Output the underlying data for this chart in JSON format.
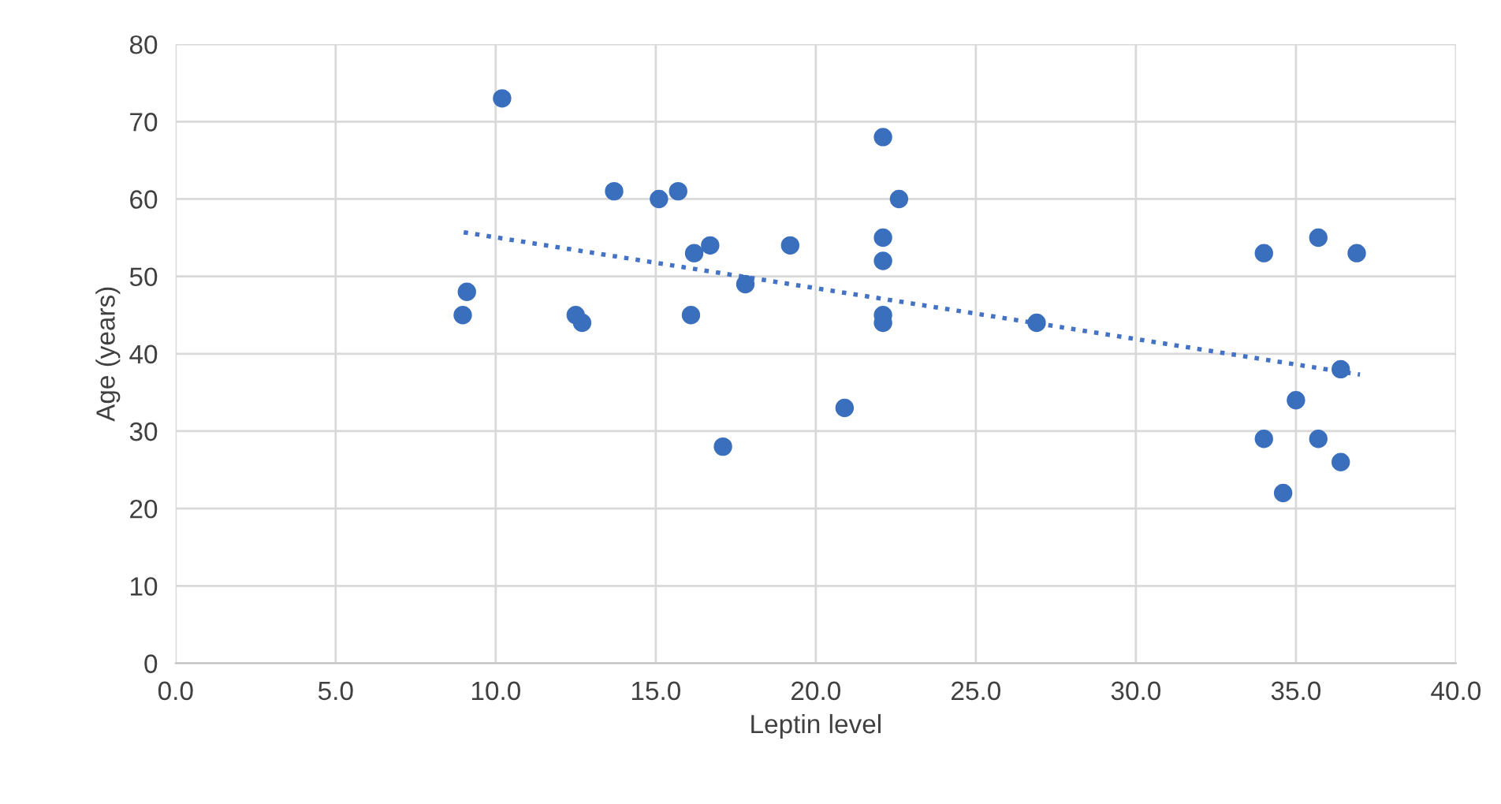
{
  "chart_data": {
    "type": "scatter",
    "xlabel": "Leptin level",
    "ylabel": "Age (years)",
    "xlim": [
      0,
      40
    ],
    "ylim": [
      0,
      80
    ],
    "xticks": [
      {
        "value": 0,
        "label": "0.0"
      },
      {
        "value": 5,
        "label": "5.0"
      },
      {
        "value": 10,
        "label": "10.0"
      },
      {
        "value": 15,
        "label": "15.0"
      },
      {
        "value": 20,
        "label": "20.0"
      },
      {
        "value": 25,
        "label": "25.0"
      },
      {
        "value": 30,
        "label": "30.0"
      },
      {
        "value": 35,
        "label": "35.0"
      },
      {
        "value": 40,
        "label": "40.0"
      }
    ],
    "yticks": [
      0,
      10,
      20,
      30,
      40,
      50,
      60,
      70,
      80
    ],
    "grid": true,
    "series": [
      {
        "marker": "circle",
        "color": "#3a6fbd",
        "x": [
          8.97,
          9.1,
          10.2,
          12.5,
          12.7,
          13.7,
          15.1,
          15.7,
          16.2,
          16.1,
          16.7,
          17.8,
          17.1,
          19.2,
          20.9,
          22.1,
          22.1,
          22.1,
          22.1,
          22.1,
          22.6,
          26.9,
          34.0,
          34.0,
          34.6,
          35.0,
          35.7,
          35.7,
          36.4,
          36.4,
          36.9
        ],
        "values": [
          45,
          48,
          73,
          45,
          44,
          61,
          60,
          61,
          53,
          45,
          54,
          49,
          28,
          54,
          33,
          68,
          55,
          52,
          45,
          44,
          60,
          44,
          53,
          29,
          22,
          34,
          55,
          29,
          38,
          26,
          53
        ]
      },
      {
        "type": "line",
        "color": "#4472c4",
        "line_style": "dotted",
        "marker": "none",
        "x": [
          9,
          37
        ],
        "values": [
          55.7,
          37.3
        ]
      }
    ]
  }
}
